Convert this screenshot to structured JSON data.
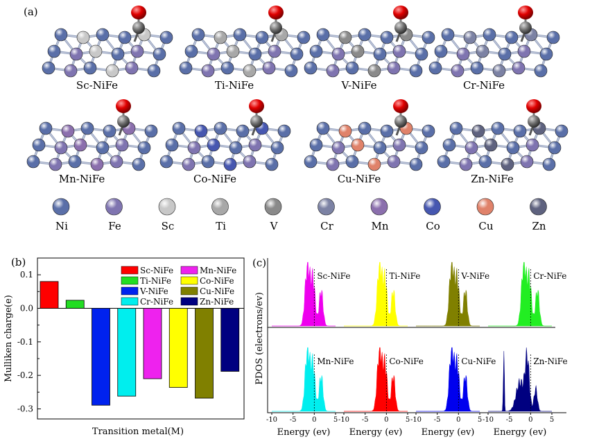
{
  "panel_a": {
    "tag": "(a)",
    "structures": [
      {
        "label": "Sc-NiFe",
        "dopant": "Sc"
      },
      {
        "label": "Ti-NiFe",
        "dopant": "Ti"
      },
      {
        "label": "V-NiFe",
        "dopant": "V"
      },
      {
        "label": "Cr-NiFe",
        "dopant": "Cr"
      },
      {
        "label": "Mn-NiFe",
        "dopant": "Mn"
      },
      {
        "label": "Co-NiFe",
        "dopant": "Co"
      },
      {
        "label": "Cu-NiFe",
        "dopant": "Cu"
      },
      {
        "label": "Zn-NiFe",
        "dopant": "Zn"
      }
    ],
    "legend": [
      {
        "name": "Ni",
        "color": "#5a6fa8"
      },
      {
        "name": "Fe",
        "color": "#7f74b0"
      },
      {
        "name": "Sc",
        "color": "#c8c8c8"
      },
      {
        "name": "Ti",
        "color": "#a8a8a8"
      },
      {
        "name": "V",
        "color": "#8a8a8a"
      },
      {
        "name": "Cr",
        "color": "#7c82a4"
      },
      {
        "name": "Mn",
        "color": "#8b6fad"
      },
      {
        "name": "Co",
        "color": "#4657b0"
      },
      {
        "name": "Cu",
        "color": "#e0826a"
      },
      {
        "name": "Zn",
        "color": "#5e627f"
      }
    ]
  },
  "chart_data": [
    {
      "type": "bar",
      "tag": "(b)",
      "xlabel": "Transition metal(M)",
      "ylabel": "Mulliken charge(e)",
      "ylim": [
        -0.33,
        0.15
      ],
      "yticks": [
        "0.1",
        "0.0",
        "-0.1",
        "-0.2",
        "-0.3"
      ],
      "ytick_values": [
        0.1,
        0.0,
        -0.1,
        -0.2,
        -0.3
      ],
      "legend_placement": "top-right",
      "series": [
        {
          "name": "Sc-NiFe",
          "value": 0.08,
          "color": "#ff0000"
        },
        {
          "name": "Ti-NiFe",
          "value": 0.024,
          "color": "#22dd22"
        },
        {
          "name": "V-NiFe",
          "value": -0.289,
          "color": "#0022ee"
        },
        {
          "name": "Cr-NiFe",
          "value": -0.262,
          "color": "#00eeee"
        },
        {
          "name": "Mn-NiFe",
          "value": -0.21,
          "color": "#ee22ee"
        },
        {
          "name": "Co-NiFe",
          "value": -0.236,
          "color": "#ffff00"
        },
        {
          "name": "Cu-NiFe",
          "value": -0.268,
          "color": "#808000"
        },
        {
          "name": "Zn-NiFe",
          "value": -0.188,
          "color": "#000080"
        }
      ]
    },
    {
      "type": "area",
      "tag": "(c)",
      "ylabel": "PDOS (electrons/ev)",
      "xlabel": "Energy (ev)",
      "xlim": [
        -10,
        5
      ],
      "xticks": [
        "-10",
        "-5",
        "0",
        "5"
      ],
      "panels": [
        {
          "name": "Sc-NiFe",
          "color": "#ee00ee"
        },
        {
          "name": "Ti-NiFe",
          "color": "#ffff00"
        },
        {
          "name": "V-NiFe",
          "color": "#808000"
        },
        {
          "name": "Cr-NiFe",
          "color": "#22ee22"
        },
        {
          "name": "Mn-NiFe",
          "color": "#00eeee"
        },
        {
          "name": "Co-NiFe",
          "color": "#ff0000"
        },
        {
          "name": "Cu-NiFe",
          "color": "#0000ee"
        },
        {
          "name": "Zn-NiFe",
          "color": "#000080"
        }
      ]
    }
  ]
}
